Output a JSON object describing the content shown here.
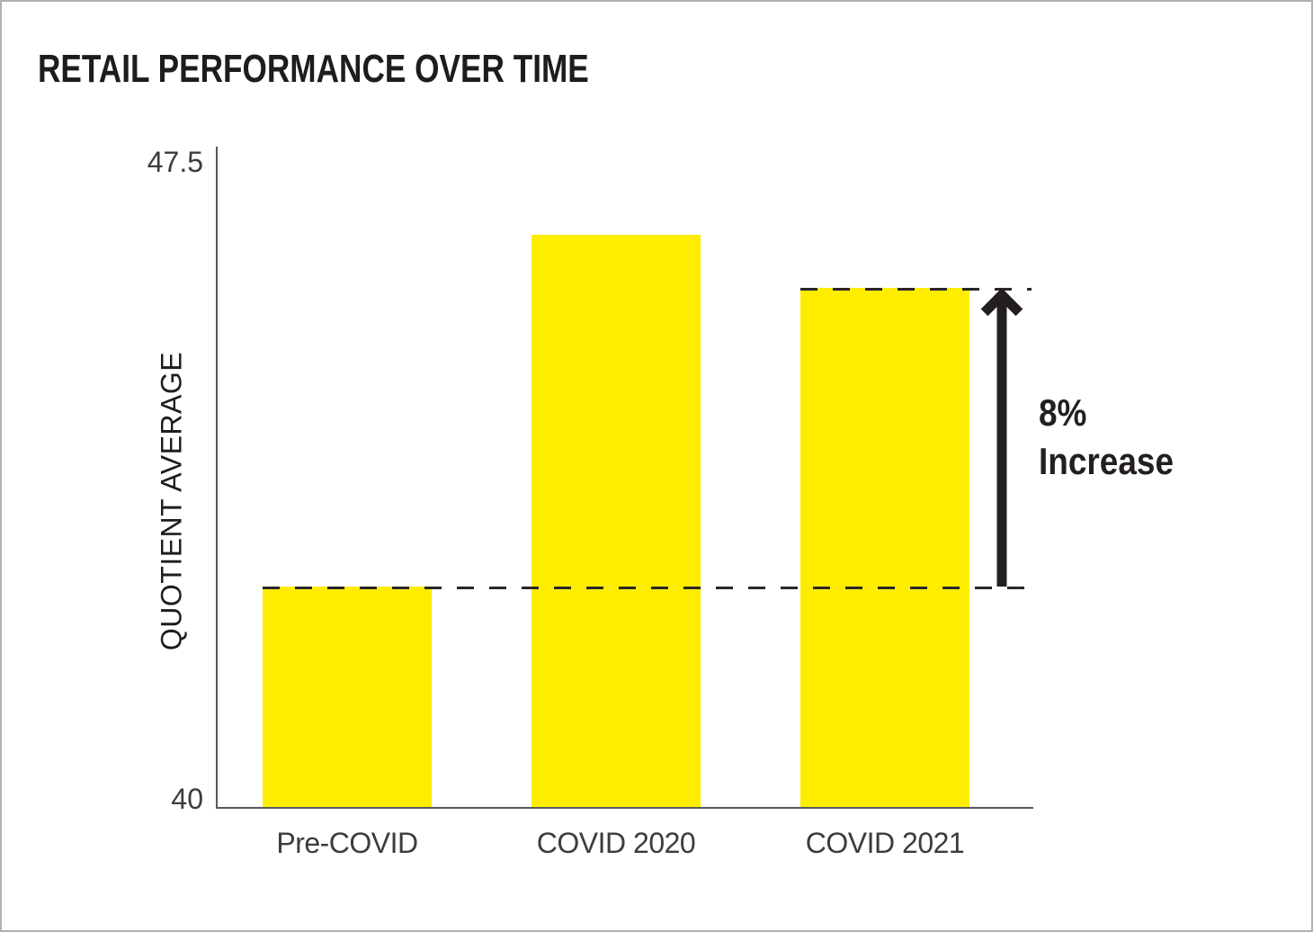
{
  "page": {
    "background": "#ffffff",
    "border_color": "#b2b2b2"
  },
  "chart_data": {
    "type": "bar",
    "title": "RETAIL PERFORMANCE OVER TIME",
    "categories": [
      "Pre-COVID",
      "COVID 2020",
      "COVID 2021"
    ],
    "values": [
      42.5,
      46.5,
      45.9
    ],
    "xlabel": "",
    "ylabel": "QUOTIENT AVERAGE",
    "ylim": [
      40,
      47.5
    ],
    "ytick_labels": {
      "top": "47.5",
      "bottom": "40"
    },
    "grid": false,
    "legend": false,
    "bar_color": "#ffed00",
    "axis_color": "#58595b",
    "text_color": "#231f20",
    "reference_lines": [
      {
        "style": "dashed",
        "value": 42.5
      },
      {
        "style": "dashed",
        "value": 45.9
      }
    ],
    "annotation": {
      "line1": "8%",
      "line2": "Increase",
      "arrow": "up",
      "from_value": 42.5,
      "to_value": 45.9
    }
  }
}
